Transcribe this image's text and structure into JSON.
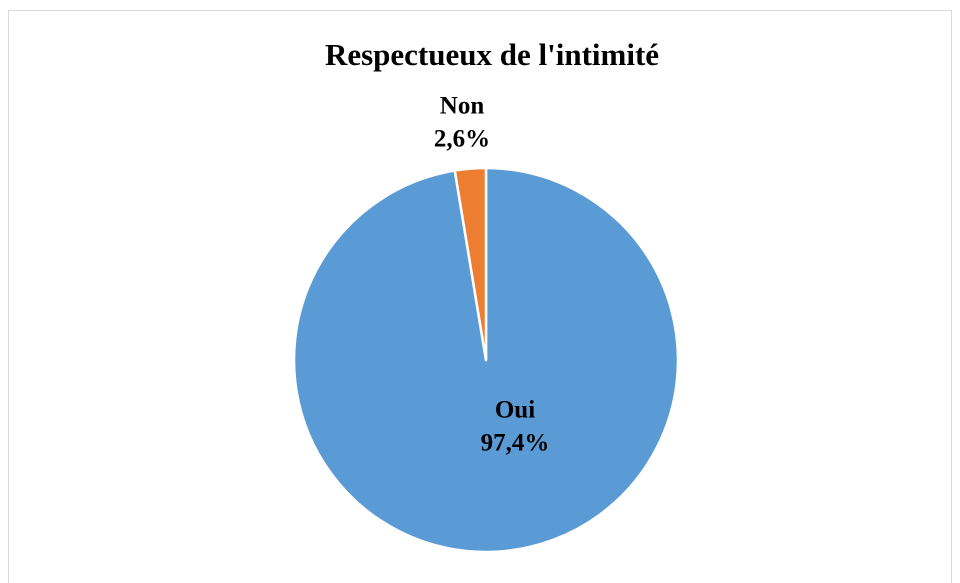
{
  "chart_data": {
    "type": "pie",
    "title": "Respectueux de l'intimité",
    "categories": [
      "Oui",
      "Non"
    ],
    "values": [
      97.4,
      2.6
    ],
    "value_labels": [
      "97,4%",
      "2,6%"
    ],
    "colors": [
      "#5b9bd5",
      "#ed7d31"
    ]
  }
}
